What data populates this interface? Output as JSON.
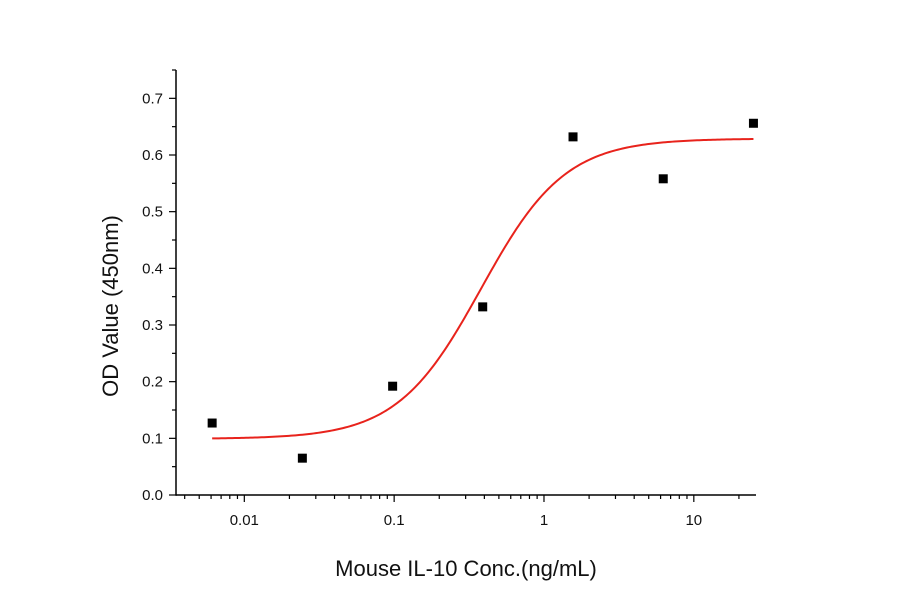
{
  "chart_data": {
    "type": "scatter",
    "xlabel": "Mouse IL-10 Conc.(ng/mL)",
    "ylabel": "OD Value (450nm)",
    "x_scale": "log",
    "xlim": [
      0.0035,
      26
    ],
    "ylim": [
      0,
      0.75
    ],
    "x_ticks": [
      0.01,
      0.1,
      1,
      10
    ],
    "x_tick_labels": [
      "0.01",
      "0.1",
      "1",
      "10"
    ],
    "y_ticks": [
      0.0,
      0.1,
      0.2,
      0.3,
      0.4,
      0.5,
      0.6,
      0.7
    ],
    "y_tick_labels": [
      "0.0",
      "0.1",
      "0.2",
      "0.3",
      "0.4",
      "0.5",
      "0.6",
      "0.7"
    ],
    "grid": false,
    "series": [
      {
        "type": "scatter",
        "marker": "square",
        "color": "#000000",
        "x": [
          0.0061,
          0.0244,
          0.0977,
          0.39,
          1.5625,
          6.25,
          25
        ],
        "y": [
          0.127,
          0.065,
          0.192,
          0.332,
          0.632,
          0.558,
          0.656
        ]
      },
      {
        "type": "line",
        "fit": "four-parameter-logistic",
        "color": "#e8231c",
        "x_range": [
          0.0061,
          25
        ],
        "bottom": 0.099,
        "top": 0.629,
        "ec50": 0.38,
        "hill": 1.55
      }
    ]
  }
}
